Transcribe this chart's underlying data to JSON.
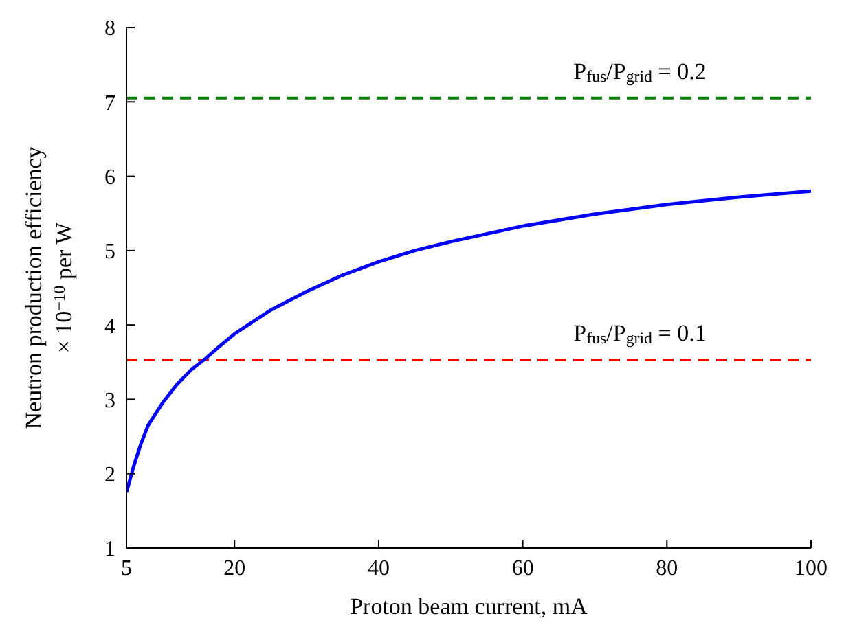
{
  "chart_data": {
    "type": "line",
    "xlabel": "Proton beam current, mA",
    "ylabel": "Neutron production efficiency\n× 10$^{−10}$ per W",
    "x": [
      5,
      6,
      7,
      8,
      10,
      12,
      14,
      16,
      18,
      20,
      25,
      30,
      35,
      40,
      45,
      50,
      60,
      70,
      80,
      90,
      100
    ],
    "series": [
      {
        "color": "#0000ff",
        "values": [
          1.75,
          2.1,
          2.4,
          2.65,
          2.95,
          3.2,
          3.4,
          3.55,
          3.72,
          3.88,
          4.2,
          4.45,
          4.67,
          4.85,
          5.0,
          5.12,
          5.33,
          5.49,
          5.62,
          5.72,
          5.8
        ]
      }
    ],
    "xlim": [
      5,
      100
    ],
    "xticks": [
      5,
      20,
      40,
      60,
      80,
      100
    ],
    "ylim": [
      1,
      8
    ],
    "yticks": [
      1,
      2,
      3,
      4,
      5,
      6,
      7,
      8
    ],
    "ref_lines": [
      {
        "axis": "y",
        "value": 7.05,
        "color": "#008000",
        "line_style": "dashed"
      },
      {
        "axis": "y",
        "value": 3.53,
        "color": "#ff0000",
        "line_style": "dashed"
      }
    ],
    "annotations": [
      "P$_{fus}$/P$_{grid}$ = 0.2",
      "P$_{fus}$/P$_{grid}$ = 0.1"
    ],
    "grid": false,
    "legend": false,
    "marker": "none",
    "line_style": "solid"
  }
}
